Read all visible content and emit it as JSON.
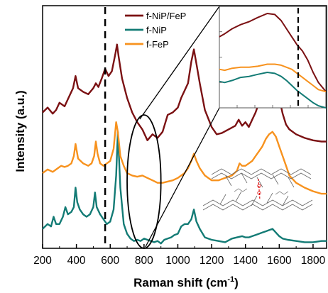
{
  "chart_data": {
    "type": "line",
    "xlabel": "Raman shift (cm",
    "xlabel_sup": "-1",
    "xlabel_tail": ")",
    "ylabel": "Intensity (a.u.)",
    "xlim": [
      200,
      1880
    ],
    "xticks": [
      200,
      400,
      600,
      800,
      1000,
      1200,
      1400,
      1600,
      1800
    ],
    "legend_position": "top-center",
    "reference_line_x": 570,
    "inset_reference_x": 820,
    "highlight_region_x": [
      700,
      900
    ],
    "series": [
      {
        "name": "f-NiP/FeP",
        "color": "#7b1113",
        "x": [
          200,
          230,
          260,
          280,
          300,
          330,
          360,
          380,
          395,
          410,
          440,
          470,
          500,
          515,
          530,
          550,
          570,
          590,
          610,
          630,
          640,
          650,
          670,
          700,
          730,
          760,
          790,
          820,
          850,
          880,
          910,
          940,
          970,
          1000,
          1020,
          1040,
          1060,
          1080,
          1095,
          1110,
          1130,
          1160,
          1200,
          1230,
          1260,
          1300,
          1340,
          1360,
          1380,
          1400,
          1420,
          1440,
          1460,
          1480,
          1500,
          1520,
          1540,
          1560,
          1580,
          1600,
          1620,
          1640,
          1660,
          1700,
          1750,
          1800,
          1850,
          1880
        ],
        "y": [
          0.56,
          0.58,
          0.555,
          0.57,
          0.6,
          0.585,
          0.63,
          0.66,
          0.71,
          0.66,
          0.645,
          0.635,
          0.66,
          0.68,
          0.665,
          0.7,
          0.74,
          0.71,
          0.73,
          0.8,
          0.84,
          0.79,
          0.7,
          0.62,
          0.56,
          0.52,
          0.49,
          0.445,
          0.47,
          0.455,
          0.48,
          0.55,
          0.56,
          0.58,
          0.62,
          0.65,
          0.68,
          0.77,
          0.82,
          0.76,
          0.68,
          0.57,
          0.5,
          0.47,
          0.475,
          0.49,
          0.505,
          0.53,
          0.505,
          0.52,
          0.5,
          0.53,
          0.56,
          0.6,
          0.62,
          0.65,
          0.67,
          0.7,
          0.67,
          0.62,
          0.555,
          0.51,
          0.49,
          0.47,
          0.455,
          0.445,
          0.44,
          0.44
        ]
      },
      {
        "name": "f-NiP",
        "color": "#137b75",
        "x": [
          200,
          230,
          250,
          265,
          280,
          300,
          320,
          335,
          350,
          370,
          385,
          395,
          405,
          420,
          440,
          460,
          480,
          500,
          510,
          520,
          540,
          560,
          580,
          600,
          620,
          635,
          645,
          660,
          680,
          700,
          720,
          740,
          760,
          780,
          800,
          820,
          840,
          860,
          880,
          900,
          920,
          940,
          960,
          980,
          1000,
          1020,
          1040,
          1060,
          1080,
          1095,
          1110,
          1130,
          1160,
          1200,
          1240,
          1280,
          1320,
          1350,
          1380,
          1400,
          1420,
          1440,
          1460,
          1480,
          1500,
          1520,
          1540,
          1560,
          1580,
          1600,
          1620,
          1650,
          1700,
          1750,
          1800,
          1850,
          1880
        ],
        "y": [
          0.08,
          0.1,
          0.09,
          0.13,
          0.1,
          0.1,
          0.13,
          0.17,
          0.14,
          0.15,
          0.17,
          0.25,
          0.19,
          0.16,
          0.14,
          0.13,
          0.14,
          0.17,
          0.23,
          0.17,
          0.14,
          0.12,
          0.1,
          0.11,
          0.16,
          0.3,
          0.48,
          0.25,
          0.1,
          0.06,
          0.04,
          0.03,
          0.035,
          0.03,
          0.04,
          0.035,
          0.03,
          0.025,
          0.03,
          0.02,
          0.035,
          0.04,
          0.045,
          0.055,
          0.06,
          0.09,
          0.1,
          0.1,
          0.12,
          0.16,
          0.11,
          0.08,
          0.045,
          0.035,
          0.03,
          0.025,
          0.04,
          0.045,
          0.05,
          0.045,
          0.045,
          0.05,
          0.055,
          0.06,
          0.065,
          0.07,
          0.075,
          0.08,
          0.065,
          0.05,
          0.04,
          0.035,
          0.03,
          0.025,
          0.025,
          0.03,
          0.03
        ]
      },
      {
        "name": "f-FeP",
        "color": "#f7921e",
        "x": [
          200,
          230,
          260,
          290,
          310,
          330,
          350,
          370,
          385,
          395,
          410,
          440,
          470,
          490,
          505,
          515,
          525,
          540,
          560,
          580,
          600,
          620,
          635,
          645,
          660,
          680,
          700,
          730,
          760,
          790,
          820,
          850,
          880,
          910,
          940,
          970,
          1000,
          1020,
          1040,
          1060,
          1080,
          1095,
          1110,
          1130,
          1160,
          1200,
          1240,
          1280,
          1320,
          1350,
          1365,
          1380,
          1400,
          1420,
          1440,
          1460,
          1480,
          1500,
          1520,
          1540,
          1560,
          1580,
          1600,
          1620,
          1640,
          1660,
          1700,
          1750,
          1800,
          1850,
          1880
        ],
        "y": [
          0.31,
          0.325,
          0.315,
          0.33,
          0.34,
          0.335,
          0.34,
          0.35,
          0.38,
          0.43,
          0.37,
          0.35,
          0.34,
          0.35,
          0.38,
          0.44,
          0.39,
          0.35,
          0.34,
          0.35,
          0.36,
          0.41,
          0.52,
          0.48,
          0.38,
          0.34,
          0.31,
          0.3,
          0.295,
          0.3,
          0.29,
          0.28,
          0.27,
          0.27,
          0.275,
          0.28,
          0.29,
          0.3,
          0.31,
          0.33,
          0.36,
          0.39,
          0.36,
          0.33,
          0.3,
          0.28,
          0.28,
          0.29,
          0.3,
          0.32,
          0.35,
          0.34,
          0.34,
          0.35,
          0.36,
          0.38,
          0.4,
          0.42,
          0.45,
          0.47,
          0.48,
          0.46,
          0.42,
          0.38,
          0.34,
          0.3,
          0.27,
          0.25,
          0.235,
          0.225,
          0.225
        ]
      }
    ],
    "inset": {
      "series": [
        {
          "name": "f-NiP/FeP",
          "color": "#7b1113",
          "x": [
            0,
            0.05,
            0.12,
            0.2,
            0.28,
            0.36,
            0.45,
            0.52,
            0.58,
            0.63,
            0.68,
            0.73,
            0.78,
            0.83,
            0.88,
            0.93,
            1.0
          ],
          "y": [
            0.7,
            0.73,
            0.78,
            0.82,
            0.85,
            0.89,
            0.93,
            0.92,
            0.86,
            0.78,
            0.7,
            0.62,
            0.56,
            0.47,
            0.35,
            0.25,
            0.16
          ]
        },
        {
          "name": "f-FeP",
          "color": "#f7921e",
          "x": [
            0,
            0.05,
            0.12,
            0.2,
            0.28,
            0.36,
            0.45,
            0.52,
            0.58,
            0.63,
            0.68,
            0.73,
            0.78,
            0.83,
            0.88,
            0.93,
            1.0
          ],
          "y": [
            0.38,
            0.37,
            0.39,
            0.4,
            0.4,
            0.41,
            0.43,
            0.43,
            0.42,
            0.4,
            0.38,
            0.34,
            0.3,
            0.26,
            0.22,
            0.18,
            0.16
          ]
        },
        {
          "name": "f-NiP",
          "color": "#137b75",
          "x": [
            0,
            0.05,
            0.12,
            0.2,
            0.28,
            0.36,
            0.45,
            0.52,
            0.58,
            0.63,
            0.68,
            0.73,
            0.78,
            0.83,
            0.88,
            0.93,
            1.0
          ],
          "y": [
            0.26,
            0.25,
            0.27,
            0.3,
            0.31,
            0.33,
            0.35,
            0.34,
            0.31,
            0.27,
            0.22,
            0.17,
            0.13,
            0.09,
            0.05,
            0.02,
            0.0
          ]
        }
      ],
      "reference_line_pos": 0.74
    }
  }
}
